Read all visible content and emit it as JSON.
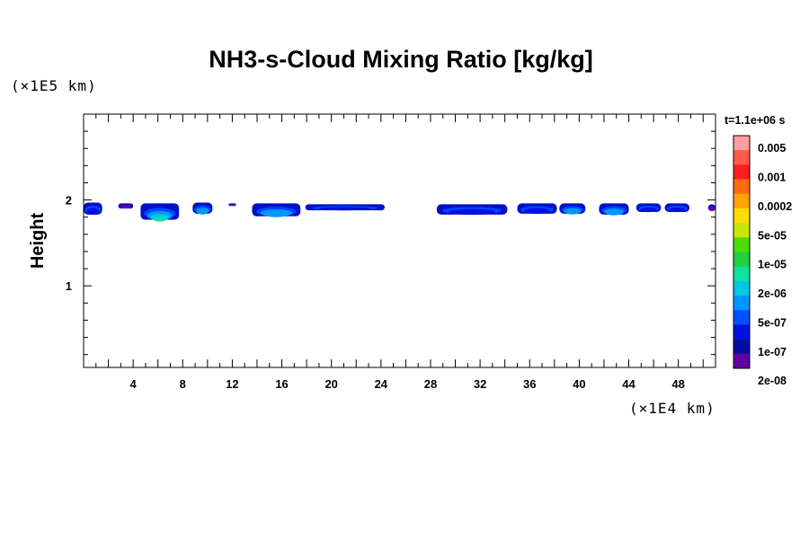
{
  "chart_data": {
    "type": "heatmap",
    "title": "NH3-s-Cloud Mixing Ratio [kg/kg]",
    "ylabel": "Height",
    "xlabel": "",
    "y_unit": "(×1E5 km)",
    "x_unit": "(×1E4 km)",
    "time_label": "t=1.1e+06 s",
    "xlim": [
      0,
      51
    ],
    "ylim": [
      0.05,
      3.0
    ],
    "x_ticks": [
      4,
      8,
      12,
      16,
      20,
      24,
      28,
      32,
      36,
      40,
      44,
      48
    ],
    "x_tick_labels": [
      "4",
      "8",
      "12",
      "16",
      "20",
      "24",
      "28",
      "32",
      "36",
      "40",
      "44",
      "48"
    ],
    "y_ticks": [
      1,
      2
    ],
    "y_tick_labels": [
      "1",
      "2"
    ],
    "colorbar": {
      "labels": [
        "0.005",
        "0.001",
        "0.0002",
        "5e-05",
        "1e-05",
        "2e-06",
        "5e-07",
        "1e-07",
        "2e-08"
      ],
      "colors_top_to_bottom": [
        "#ff9f9f",
        "#ff5a4a",
        "#ff1e1e",
        "#ff6a10",
        "#ffa500",
        "#ffdc00",
        "#c8e600",
        "#50dc00",
        "#20d040",
        "#10e0a0",
        "#00c8e0",
        "#0096ff",
        "#0050ff",
        "#0010e0",
        "#00109c",
        "#6400a0"
      ]
    },
    "cloud_band_height": [
      1.8,
      1.97
    ],
    "cloud_patches": [
      {
        "x": [
          0.0,
          1.5
        ],
        "y": [
          1.83,
          1.97
        ],
        "peak": "5e-07"
      },
      {
        "x": [
          2.8,
          4.0
        ],
        "y": [
          1.9,
          1.96
        ],
        "peak": "1e-07"
      },
      {
        "x": [
          4.6,
          7.7
        ],
        "y": [
          1.77,
          1.96
        ],
        "peak": "1e-05"
      },
      {
        "x": [
          8.8,
          10.4
        ],
        "y": [
          1.84,
          1.97
        ],
        "peak": "2e-06"
      },
      {
        "x": [
          11.7,
          12.3
        ],
        "y": [
          1.93,
          1.96
        ],
        "peak": "1e-07"
      },
      {
        "x": [
          13.6,
          17.5
        ],
        "y": [
          1.81,
          1.96
        ],
        "peak": "2e-06"
      },
      {
        "x": [
          17.9,
          24.3
        ],
        "y": [
          1.88,
          1.95
        ],
        "peak": "5e-07"
      },
      {
        "x": [
          28.5,
          34.2
        ],
        "y": [
          1.83,
          1.95
        ],
        "peak": "5e-07"
      },
      {
        "x": [
          35.0,
          38.2
        ],
        "y": [
          1.84,
          1.96
        ],
        "peak": "5e-07"
      },
      {
        "x": [
          38.4,
          40.5
        ],
        "y": [
          1.84,
          1.96
        ],
        "peak": "2e-06"
      },
      {
        "x": [
          41.6,
          44.0
        ],
        "y": [
          1.83,
          1.96
        ],
        "peak": "2e-06"
      },
      {
        "x": [
          44.6,
          46.6
        ],
        "y": [
          1.86,
          1.96
        ],
        "peak": "5e-07"
      },
      {
        "x": [
          46.9,
          48.9
        ],
        "y": [
          1.86,
          1.96
        ],
        "peak": "5e-07"
      },
      {
        "x": [
          50.4,
          51.0
        ],
        "y": [
          1.87,
          1.95
        ],
        "peak": "1e-07"
      }
    ]
  }
}
